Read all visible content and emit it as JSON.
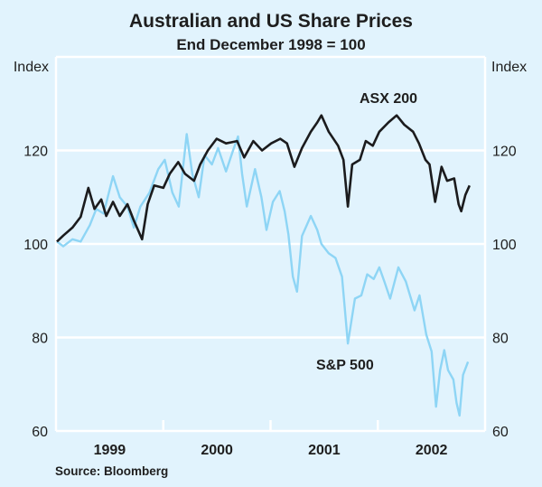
{
  "chart_data": {
    "type": "line",
    "title": "Australian and US Share Prices",
    "subtitle": "End December 1998 = 100",
    "ylabel_left": "Index",
    "ylabel_right": "Index",
    "ylim": [
      60,
      140
    ],
    "yticks": [
      60,
      80,
      100,
      120
    ],
    "xlim": [
      "1999-01-01",
      "2003-01-01"
    ],
    "xtick_labels": [
      "1999",
      "2000",
      "2001",
      "2002"
    ],
    "grid": "horizontal",
    "source": "Source: Bloomberg",
    "series": [
      {
        "name": "ASX 200",
        "color": "#1b1b1d",
        "points": [
          [
            "1999-01-04",
            100.5
          ],
          [
            "1999-01-26",
            101.8
          ],
          [
            "1999-02-26",
            103.5
          ],
          [
            "1999-03-26",
            105.8
          ],
          [
            "1999-04-21",
            112
          ],
          [
            "1999-05-12",
            107.5
          ],
          [
            "1999-06-04",
            109.5
          ],
          [
            "1999-06-21",
            106
          ],
          [
            "1999-07-14",
            109
          ],
          [
            "1999-08-06",
            106
          ],
          [
            "1999-09-01",
            108.5
          ],
          [
            "1999-09-23",
            105
          ],
          [
            "1999-10-21",
            101
          ],
          [
            "1999-11-09",
            108.5
          ],
          [
            "1999-12-01",
            112.5
          ],
          [
            "2000-01-01",
            112
          ],
          [
            "2000-01-23",
            115
          ],
          [
            "2000-02-21",
            117.5
          ],
          [
            "2000-03-15",
            115
          ],
          [
            "2000-04-15",
            113.5
          ],
          [
            "2000-05-06",
            117
          ],
          [
            "2000-06-01",
            120
          ],
          [
            "2000-07-01",
            122.5
          ],
          [
            "2000-08-02",
            121.5
          ],
          [
            "2000-09-09",
            122
          ],
          [
            "2000-10-03",
            118.5
          ],
          [
            "2000-11-03",
            122
          ],
          [
            "2000-12-03",
            120
          ],
          [
            "2001-01-03",
            121.5
          ],
          [
            "2001-02-03",
            122.5
          ],
          [
            "2001-02-26",
            121.5
          ],
          [
            "2001-03-23",
            116.5
          ],
          [
            "2001-04-18",
            120.5
          ],
          [
            "2001-05-18",
            124
          ],
          [
            "2001-06-09",
            126
          ],
          [
            "2001-06-23",
            127.5
          ],
          [
            "2001-07-18",
            124
          ],
          [
            "2001-08-19",
            121
          ],
          [
            "2001-09-06",
            118
          ],
          [
            "2001-09-21",
            108
          ],
          [
            "2001-10-06",
            117
          ],
          [
            "2001-11-01",
            118
          ],
          [
            "2001-11-21",
            122
          ],
          [
            "2001-12-15",
            121
          ],
          [
            "2002-01-06",
            124
          ],
          [
            "2002-02-06",
            126
          ],
          [
            "2002-03-06",
            127.5
          ],
          [
            "2002-04-01",
            125.5
          ],
          [
            "2002-05-01",
            124
          ],
          [
            "2002-05-21",
            121.5
          ],
          [
            "2002-06-12",
            118
          ],
          [
            "2002-06-26",
            117
          ],
          [
            "2002-07-15",
            109
          ],
          [
            "2002-08-06",
            116.5
          ],
          [
            "2002-08-25",
            113.5
          ],
          [
            "2002-09-18",
            114
          ],
          [
            "2002-10-03",
            108.5
          ],
          [
            "2002-10-12",
            107
          ],
          [
            "2002-10-26",
            110.5
          ],
          [
            "2002-11-09",
            112.5
          ]
        ]
      },
      {
        "name": "S&P 500",
        "color": "#8ed5f5",
        "points": [
          [
            "1999-01-04",
            100.5
          ],
          [
            "1999-01-26",
            99.5
          ],
          [
            "1999-02-26",
            101
          ],
          [
            "1999-03-26",
            100.5
          ],
          [
            "1999-04-26",
            104
          ],
          [
            "1999-05-18",
            107.5
          ],
          [
            "1999-06-12",
            106.5
          ],
          [
            "1999-07-14",
            114.5
          ],
          [
            "1999-08-06",
            110
          ],
          [
            "1999-09-01",
            108
          ],
          [
            "1999-09-23",
            103.5
          ],
          [
            "1999-10-15",
            108
          ],
          [
            "1999-11-15",
            111
          ],
          [
            "1999-12-15",
            116
          ],
          [
            "2000-01-06",
            118
          ],
          [
            "2000-02-01",
            111
          ],
          [
            "2000-02-23",
            108
          ],
          [
            "2000-03-21",
            123.5
          ],
          [
            "2000-04-09",
            115
          ],
          [
            "2000-05-01",
            110
          ],
          [
            "2000-05-21",
            119
          ],
          [
            "2000-06-15",
            117
          ],
          [
            "2000-07-06",
            120.5
          ],
          [
            "2000-08-02",
            115.5
          ],
          [
            "2000-08-26",
            120
          ],
          [
            "2000-09-12",
            123
          ],
          [
            "2000-09-26",
            115
          ],
          [
            "2000-10-12",
            108
          ],
          [
            "2000-11-09",
            116
          ],
          [
            "2000-12-01",
            110
          ],
          [
            "2000-12-18",
            103
          ],
          [
            "2001-01-09",
            109
          ],
          [
            "2001-02-01",
            111.3
          ],
          [
            "2001-02-18",
            107
          ],
          [
            "2001-03-03",
            102
          ],
          [
            "2001-03-18",
            93
          ],
          [
            "2001-04-01",
            89.8
          ],
          [
            "2001-04-18",
            101.7
          ],
          [
            "2001-05-18",
            106
          ],
          [
            "2001-06-09",
            103
          ],
          [
            "2001-06-23",
            100
          ],
          [
            "2001-07-18",
            98
          ],
          [
            "2001-08-10",
            97
          ],
          [
            "2001-09-01",
            93
          ],
          [
            "2001-09-21",
            78.7
          ],
          [
            "2001-10-15",
            88.3
          ],
          [
            "2001-11-06",
            89
          ],
          [
            "2001-11-26",
            93.5
          ],
          [
            "2001-12-18",
            92.5
          ],
          [
            "2002-01-06",
            95
          ],
          [
            "2002-01-23",
            92
          ],
          [
            "2002-02-12",
            88.3
          ],
          [
            "2002-03-12",
            95
          ],
          [
            "2002-04-06",
            92
          ],
          [
            "2002-05-06",
            85.8
          ],
          [
            "2002-05-23",
            89
          ],
          [
            "2002-06-15",
            80.6
          ],
          [
            "2002-07-03",
            77
          ],
          [
            "2002-07-18",
            65.2
          ],
          [
            "2002-08-01",
            73
          ],
          [
            "2002-08-15",
            77.3
          ],
          [
            "2002-08-28",
            73
          ],
          [
            "2002-09-15",
            71
          ],
          [
            "2002-09-26",
            66
          ],
          [
            "2002-10-06",
            63.3
          ],
          [
            "2002-10-18",
            72
          ],
          [
            "2002-11-04",
            74.8
          ]
        ]
      }
    ]
  }
}
